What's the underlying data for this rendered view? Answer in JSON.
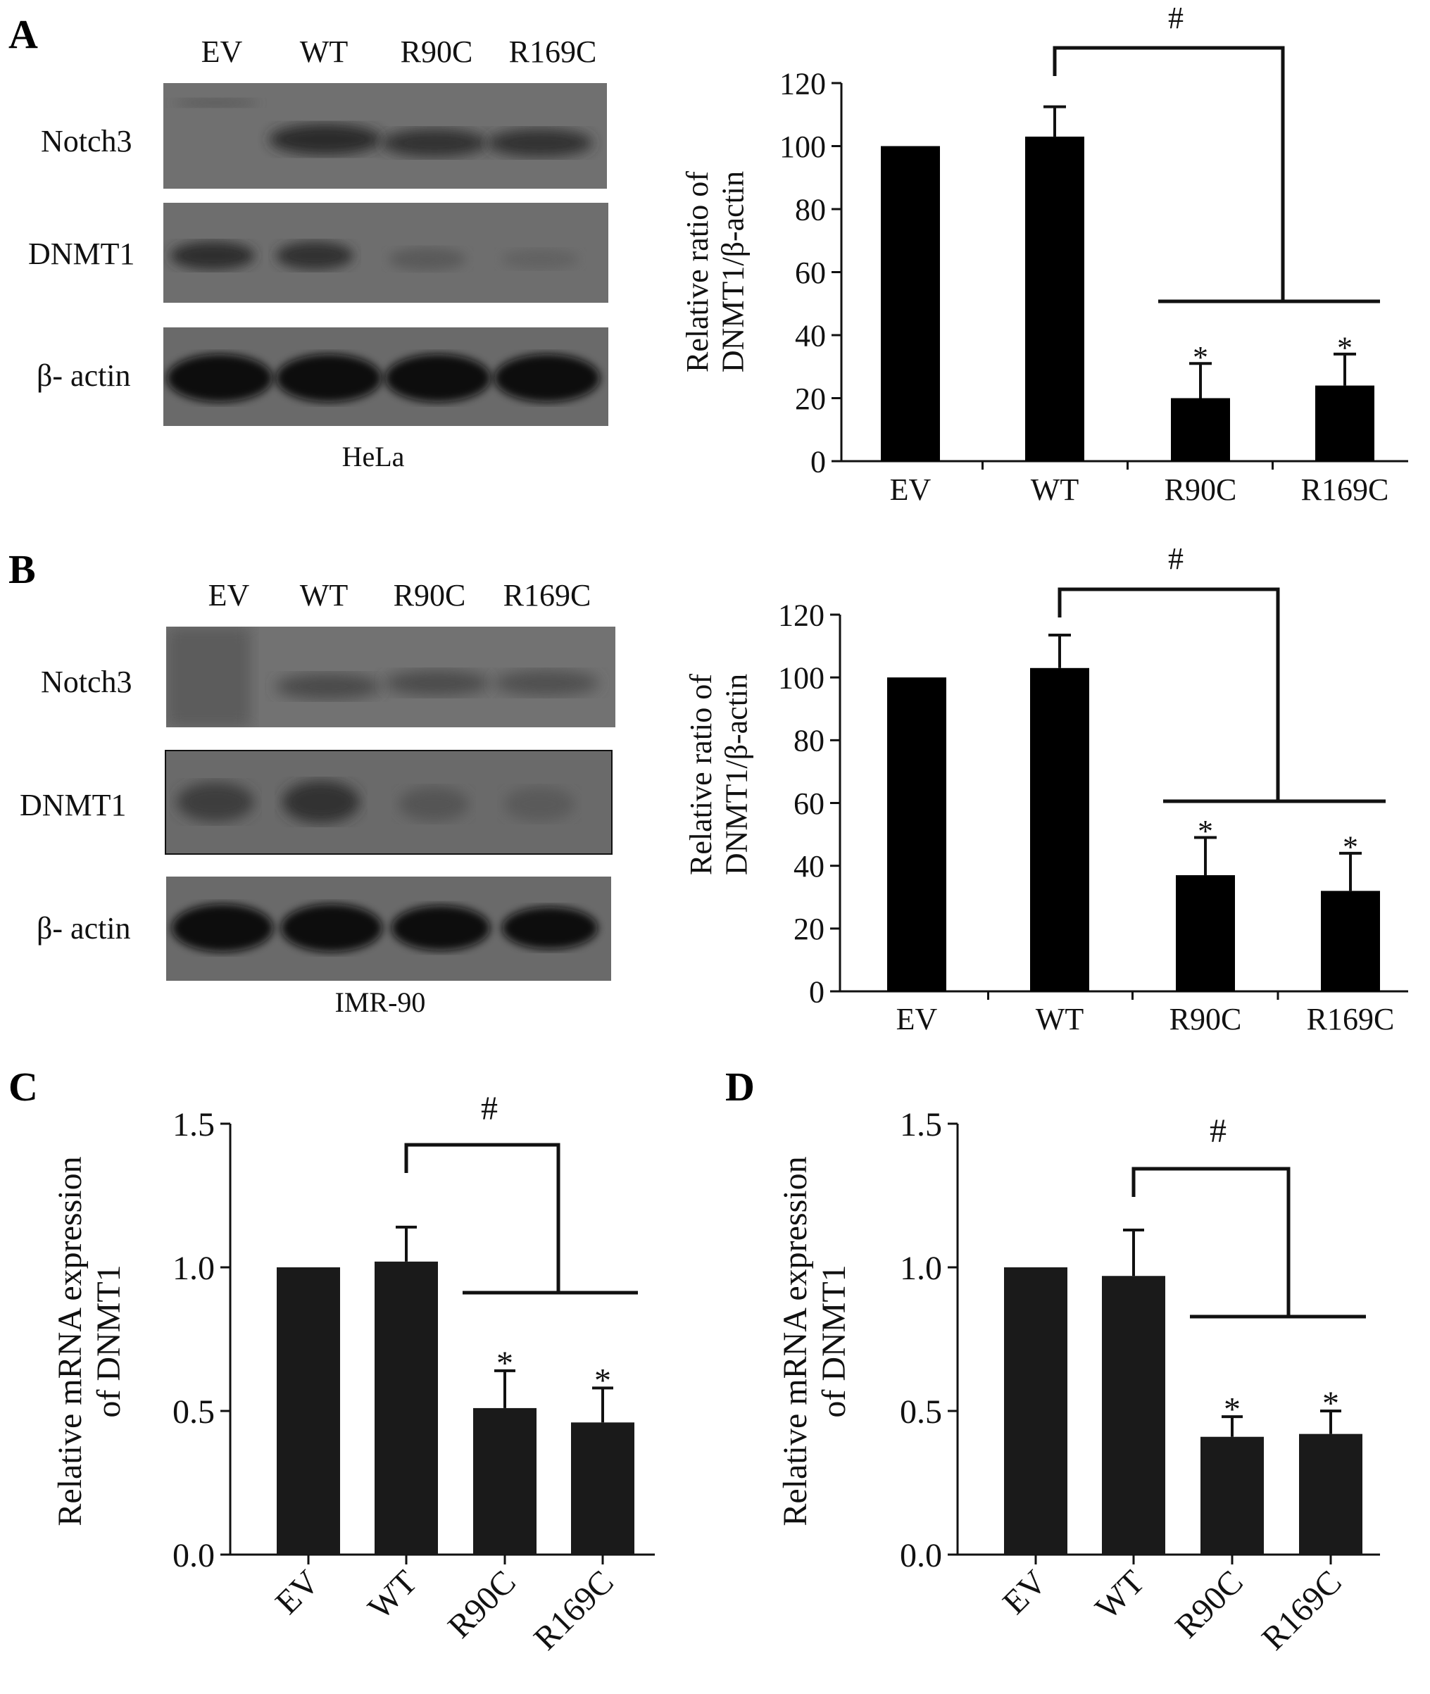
{
  "panels": {
    "A": {
      "letter": "A",
      "blot": {
        "lanes": [
          "EV",
          "WT",
          "R90C",
          "R169C"
        ],
        "rows": [
          "Notch3",
          "DNMT1",
          "β- actin"
        ],
        "cell_line": "HeLa"
      }
    },
    "B": {
      "letter": "B",
      "blot": {
        "lanes": [
          "EV",
          "WT",
          "R90C",
          "R169C"
        ],
        "rows": [
          "Notch3",
          "DNMT1",
          "β- actin"
        ],
        "cell_line": "IMR-90"
      }
    },
    "C": {
      "letter": "C"
    },
    "D": {
      "letter": "D"
    }
  },
  "chart_data": [
    {
      "id": "A",
      "type": "bar",
      "categories": [
        "EV",
        "WT",
        "R90C",
        "R169C"
      ],
      "values": [
        100,
        103,
        20,
        24
      ],
      "errors": [
        0,
        9.5,
        11,
        10
      ],
      "sig": [
        "",
        "",
        "*",
        "*"
      ],
      "bracket_label": "#",
      "ylabel": [
        "Relative ratio of",
        "DNMT1/β-actin"
      ],
      "ylim": [
        0,
        120
      ],
      "yticks": [
        "0",
        "20",
        "40",
        "60",
        "80",
        "100",
        "120"
      ],
      "bar_color": "#000000"
    },
    {
      "id": "B",
      "type": "bar",
      "categories": [
        "EV",
        "WT",
        "R90C",
        "R169C"
      ],
      "values": [
        100,
        103,
        37,
        32
      ],
      "errors": [
        0,
        10.5,
        12,
        12
      ],
      "sig": [
        "",
        "",
        "*",
        "*"
      ],
      "bracket_label": "#",
      "ylabel": [
        "Relative ratio of",
        "DNMT1/β-actin"
      ],
      "ylim": [
        0,
        120
      ],
      "yticks": [
        "0",
        "20",
        "40",
        "60",
        "80",
        "100",
        "120"
      ],
      "bar_color": "#000000"
    },
    {
      "id": "C",
      "type": "bar",
      "categories": [
        "EV",
        "WT",
        "R90C",
        "R169C"
      ],
      "values": [
        1.0,
        1.02,
        0.51,
        0.46
      ],
      "errors": [
        0,
        0.12,
        0.13,
        0.12
      ],
      "sig": [
        "",
        "",
        "*",
        "*"
      ],
      "bracket_label": "#",
      "ylabel": [
        "Relative mRNA expression",
        "of DNMT1"
      ],
      "ylim": [
        0,
        1.5
      ],
      "yticks": [
        "0.0",
        "0.5",
        "1.0",
        "1.5"
      ],
      "bar_color": "#1a1a1a"
    },
    {
      "id": "D",
      "type": "bar",
      "categories": [
        "EV",
        "WT",
        "R90C",
        "R169C"
      ],
      "values": [
        1.0,
        0.97,
        0.41,
        0.42
      ],
      "errors": [
        0,
        0.16,
        0.07,
        0.08
      ],
      "sig": [
        "",
        "",
        "*",
        "*"
      ],
      "bracket_label": "#",
      "ylabel": [
        "Relative mRNA expression",
        "of DNMT1"
      ],
      "ylim": [
        0,
        1.5
      ],
      "yticks": [
        "0.0",
        "0.5",
        "1.0",
        "1.5"
      ],
      "bar_color": "#1a1a1a"
    }
  ]
}
